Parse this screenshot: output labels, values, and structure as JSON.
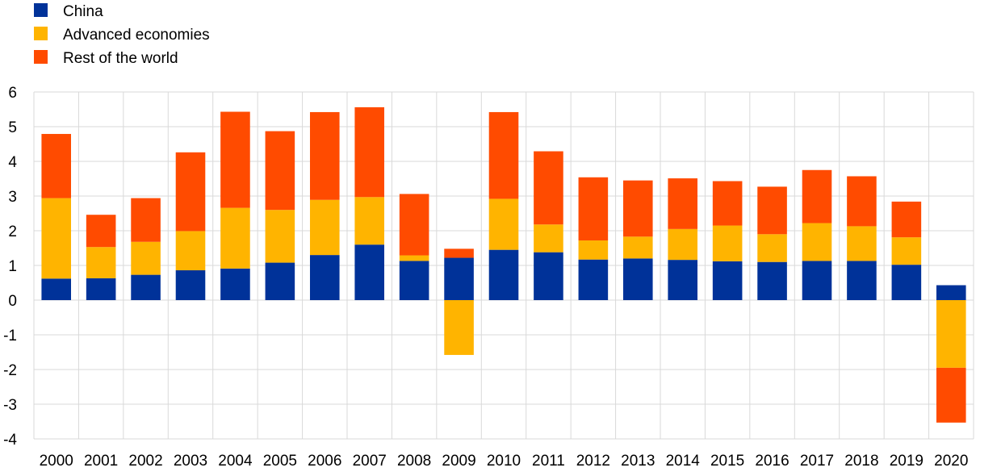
{
  "chart_data": {
    "type": "bar",
    "stacked": true,
    "title": "",
    "xlabel": "",
    "ylabel": "",
    "ylim": [
      -4,
      6
    ],
    "yticks": [
      -4,
      -3,
      -2,
      -1,
      0,
      1,
      2,
      3,
      4,
      5,
      6
    ],
    "grid": true,
    "legend_position": "top-left",
    "categories": [
      "2000",
      "2001",
      "2002",
      "2003",
      "2004",
      "2005",
      "2006",
      "2007",
      "2008",
      "2009",
      "2010",
      "2011",
      "2012",
      "2013",
      "2014",
      "2015",
      "2016",
      "2017",
      "2018",
      "2019",
      "2020"
    ],
    "series": [
      {
        "name": "China",
        "color": "#003299",
        "values": [
          0.62,
          0.63,
          0.73,
          0.86,
          0.91,
          1.08,
          1.3,
          1.6,
          1.13,
          1.22,
          1.45,
          1.38,
          1.17,
          1.2,
          1.16,
          1.12,
          1.1,
          1.13,
          1.13,
          1.02,
          0.43
        ]
      },
      {
        "name": "Advanced economies",
        "color": "#FFB400",
        "values": [
          2.32,
          0.9,
          0.95,
          1.13,
          1.75,
          1.52,
          1.59,
          1.37,
          0.16,
          -1.58,
          1.47,
          0.8,
          0.55,
          0.63,
          0.89,
          1.03,
          0.8,
          1.09,
          1.0,
          0.79,
          -1.95
        ]
      },
      {
        "name": "Rest of the world",
        "color": "#FF4B00",
        "values": [
          1.85,
          0.93,
          1.26,
          2.27,
          2.77,
          2.27,
          2.53,
          2.59,
          1.77,
          0.26,
          2.5,
          2.11,
          1.82,
          1.62,
          1.46,
          1.28,
          1.37,
          1.53,
          1.44,
          1.03,
          -1.58
        ]
      }
    ]
  }
}
